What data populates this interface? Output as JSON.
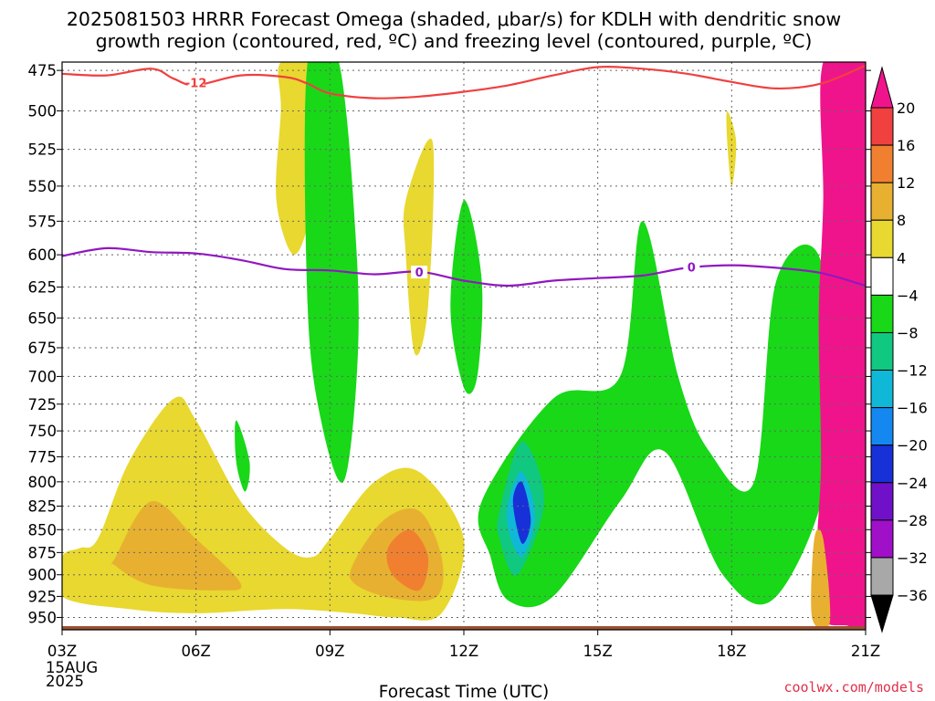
{
  "title_line1": "2025081503 HRRR Forecast Omega (shaded, μbar/s) for KDLH with dendritic snow",
  "title_line2": "growth region (contoured, red, ºC) and freezing level (contoured, purple, ºC)",
  "credit": "coolwx.com/models",
  "chart_data": {
    "type": "time-height cross section",
    "title": "2025081503 HRRR Forecast Omega (shaded, μbar/s) for KDLH with dendritic snow growth region (contoured, red, ºC) and freezing level (contoured, purple, ºC)",
    "xlabel": "Forecast Time (UTC)",
    "date_label": [
      "15AUG",
      "2025"
    ],
    "x_ticks": [
      "03Z",
      "06Z",
      "09Z",
      "12Z",
      "15Z",
      "18Z",
      "21Z"
    ],
    "xlim_hours": [
      3,
      21
    ],
    "y_ticks": [
      475,
      500,
      525,
      550,
      575,
      600,
      625,
      650,
      675,
      700,
      725,
      750,
      775,
      800,
      825,
      850,
      875,
      900,
      925,
      950
    ],
    "ylim_hPa": [
      470,
      965
    ],
    "y_scale": "log-pressure (top = low pressure)",
    "grid": true,
    "colorbar": {
      "labels": [
        "20",
        "16",
        "12",
        "8",
        "4",
        "−4",
        "−8",
        "−12",
        "−16",
        "−20",
        "−24",
        "−28",
        "−32",
        "−36"
      ],
      "bins": [
        {
          "color": "#f0148c"
        },
        {
          "color": "#f04040"
        },
        {
          "color": "#f08030"
        },
        {
          "color": "#e8b030"
        },
        {
          "color": "#e8d830"
        },
        {
          "color": "#ffffff"
        },
        {
          "color": "#18d818"
        },
        {
          "color": "#10c880"
        },
        {
          "color": "#10b8d8"
        },
        {
          "color": "#1488f0"
        },
        {
          "color": "#1830d8"
        },
        {
          "color": "#7010c8"
        },
        {
          "color": "#a010c8"
        },
        {
          "color": "#a8a8a8"
        },
        {
          "color": "#000000"
        }
      ]
    },
    "contours": [
      {
        "name": "-12",
        "color": "#f04040",
        "hours": [
          3,
          4,
          5,
          5.5,
          6,
          7,
          8,
          8.5,
          9,
          10,
          11,
          12,
          13,
          14,
          15,
          16,
          17,
          18,
          19,
          20,
          21
        ],
        "hPa": [
          477,
          478,
          474,
          480,
          484,
          478,
          479,
          483,
          489,
          492,
          491,
          488,
          484,
          478,
          473,
          474,
          477,
          482,
          486,
          483,
          472
        ]
      },
      {
        "name": "0",
        "color": "#9018c0",
        "hours": [
          3,
          4,
          5,
          6,
          7,
          8,
          9,
          10,
          11,
          12,
          13,
          14,
          15,
          16,
          17,
          18,
          19,
          20,
          21
        ],
        "hPa": [
          601,
          595,
          598,
          599,
          604,
          611,
          612,
          615,
          613,
          620,
          624,
          620,
          618,
          616,
          610,
          608,
          610,
          614,
          624
        ]
      }
    ],
    "contour_labels": [
      {
        "text": "-12",
        "hour": 6.0,
        "hPa": 483,
        "color": "#f04040"
      },
      {
        "text": "0",
        "hour": 11.0,
        "hPa": 614,
        "color": "#9018c0"
      },
      {
        "text": "0",
        "hour": 17.1,
        "hPa": 610,
        "color": "#9018c0"
      }
    ],
    "shaded_regions_omega_ubar_s": [
      {
        "value_range": "4 to 8",
        "hours": [
          3.8,
          4.5,
          5.5,
          6.0,
          7.0,
          8.0,
          8.6,
          9.0,
          10.0,
          11.0,
          12.0,
          11.5,
          10.5,
          9.5,
          8.0,
          6.0,
          4.5,
          3.0,
          3.0,
          3.4
        ],
        "hPa": [
          860,
          780,
          720,
          740,
          820,
          870,
          880,
          860,
          800,
          790,
          860,
          945,
          950,
          945,
          940,
          945,
          940,
          925,
          880,
          870
        ]
      },
      {
        "value_range": "8 to 12",
        "hours": [
          4.2,
          5.0,
          6.0,
          7.0,
          6.5,
          5.0,
          4.2
        ],
        "hPa": [
          880,
          820,
          860,
          910,
          918,
          912,
          890
        ]
      },
      {
        "value_range": "8 to 12",
        "hours": [
          9.5,
          10.2,
          11.0,
          11.5,
          11.4,
          10.5,
          9.6
        ],
        "hPa": [
          890,
          840,
          830,
          880,
          925,
          928,
          912
        ]
      },
      {
        "value_range": "12 to 16",
        "hours": [
          10.3,
          10.8,
          11.2,
          11.0,
          10.4
        ],
        "hPa": [
          870,
          850,
          880,
          918,
          900
        ]
      },
      {
        "value_range": "4 to 8",
        "hours": [
          7.9,
          8.8,
          8.6,
          8.2,
          7.8,
          7.9
        ],
        "hPa": [
          470,
          470,
          560,
          600,
          560,
          500
        ]
      },
      {
        "value_range": "4 to 8",
        "hours": [
          10.7,
          11.3,
          11.2,
          10.9,
          10.7
        ],
        "hPa": [
          560,
          520,
          640,
          680,
          600
        ]
      },
      {
        "value_range": "4 to 8",
        "hours": [
          17.9,
          18.1,
          18.0,
          17.9
        ],
        "hPa": [
          500,
          520,
          550,
          520
        ]
      },
      {
        "value_range": "-4 to -8",
        "hours": [
          8.5,
          9.2,
          9.6,
          9.6,
          9.3,
          8.8,
          8.5
        ],
        "hPa": [
          470,
          470,
          600,
          700,
          800,
          740,
          640
        ]
      },
      {
        "value_range": "-4 to -8",
        "hours": [
          12.0,
          12.4,
          12.3,
          12.0,
          11.7
        ],
        "hPa": [
          560,
          620,
          700,
          710,
          640
        ]
      },
      {
        "value_range": "-4 to -8",
        "hours": [
          6.9,
          7.2,
          7.1,
          6.9
        ],
        "hPa": [
          740,
          780,
          810,
          780
        ]
      },
      {
        "value_range": "-4 to -8",
        "hours": [
          12.4,
          14.0,
          15.5,
          16.0,
          16.8,
          17.5,
          18.5,
          19.0,
          20.0,
          20.2,
          19.0,
          17.8,
          16.5,
          15.5,
          14.0,
          13.0,
          12.6
        ],
        "hPa": [
          820,
          720,
          700,
          575,
          700,
          770,
          800,
          620,
          605,
          780,
          925,
          900,
          770,
          820,
          925,
          930,
          880
        ]
      },
      {
        "value_range": "-8 to -12",
        "hours": [
          12.8,
          13.3,
          13.8,
          13.2,
          12.8
        ],
        "hPa": [
          830,
          760,
          820,
          900,
          860
        ]
      },
      {
        "value_range": "-12 to -16",
        "hours": [
          13.0,
          13.3,
          13.6,
          13.3,
          13.0
        ],
        "hPa": [
          820,
          790,
          835,
          880,
          850
        ]
      },
      {
        "value_range": "-16 to -20",
        "hours": [
          13.1,
          13.3,
          13.5,
          13.3
        ],
        "hPa": [
          820,
          800,
          840,
          865
        ]
      }
    ]
  }
}
